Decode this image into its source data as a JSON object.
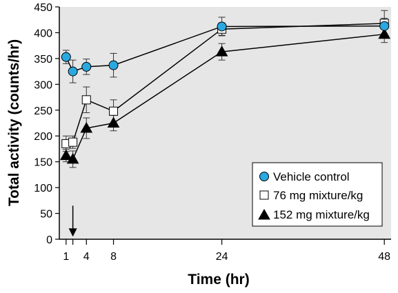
{
  "chart_data": {
    "type": "line",
    "xlabel": "Time (hr)",
    "ylabel": "Total activity (counts/hr)",
    "ylim": [
      0,
      450
    ],
    "xlim": [
      0,
      49
    ],
    "x_ticks": [
      1,
      4,
      8,
      24,
      48
    ],
    "y_ticks": [
      0,
      50,
      100,
      150,
      200,
      250,
      300,
      350,
      400,
      450
    ],
    "dosing_arrow_at": 2,
    "grid": false,
    "legend_position": "bottom-right",
    "colors": {
      "background": "#e6e6e6",
      "vehicle": "#2aa8e0",
      "mixture76": "#ffffff",
      "mixture152": "#000000"
    },
    "series": [
      {
        "name": "Vehicle control",
        "marker": "circle",
        "x": [
          1,
          2,
          4,
          8,
          24,
          48
        ],
        "y": [
          353,
          325,
          334,
          337,
          412,
          413
        ],
        "err": [
          13,
          22,
          15,
          23,
          18,
          15
        ]
      },
      {
        "name": "76 mg mixture/kg",
        "marker": "square",
        "x": [
          1,
          2,
          4,
          8,
          24,
          48
        ],
        "y": [
          185,
          188,
          270,
          248,
          407,
          418
        ],
        "err": [
          15,
          12,
          25,
          22,
          12,
          25
        ]
      },
      {
        "name": "152 mg mixture/kg",
        "marker": "triangle",
        "x": [
          1,
          2,
          4,
          8,
          24,
          48
        ],
        "y": [
          162,
          155,
          215,
          225,
          363,
          397
        ],
        "err": [
          12,
          16,
          20,
          15,
          16,
          16
        ]
      }
    ]
  }
}
